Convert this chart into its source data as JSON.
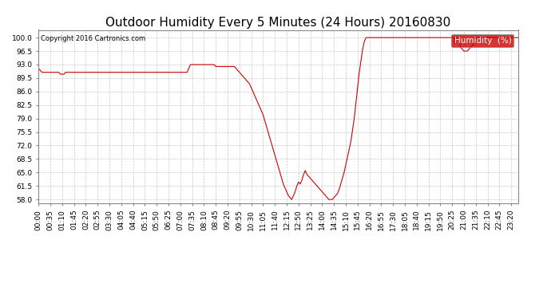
{
  "title": "Outdoor Humidity Every 5 Minutes (24 Hours) 20160830",
  "copyright_text": "Copyright 2016 Cartronics.com",
  "legend_label": "Humidity  (%)",
  "legend_bg": "#cc0000",
  "legend_text_color": "#ffffff",
  "line_color": "#cc0000",
  "background_color": "#ffffff",
  "grid_color": "#bbbbbb",
  "ylim": [
    57.0,
    102.0
  ],
  "yticks": [
    58.0,
    61.5,
    65.0,
    68.5,
    72.0,
    75.5,
    79.0,
    82.5,
    86.0,
    89.5,
    93.0,
    96.5,
    100.0
  ],
  "title_fontsize": 11,
  "tick_fontsize": 6.5,
  "humidity_data": [
    92.0,
    91.5,
    91.0,
    91.0,
    91.0,
    91.0,
    91.0,
    91.0,
    91.0,
    91.0,
    91.0,
    91.0,
    91.0,
    90.5,
    90.5,
    90.5,
    91.0,
    91.0,
    91.0,
    91.0,
    91.0,
    91.0,
    91.0,
    91.0,
    91.0,
    91.0,
    91.0,
    91.0,
    91.0,
    91.0,
    91.0,
    91.0,
    91.0,
    91.0,
    91.0,
    91.0,
    91.0,
    91.0,
    91.0,
    91.0,
    91.0,
    91.0,
    91.0,
    91.0,
    91.0,
    91.0,
    91.0,
    91.0,
    91.0,
    91.0,
    91.0,
    91.0,
    91.0,
    91.0,
    91.0,
    91.0,
    91.0,
    91.0,
    91.0,
    91.0,
    91.0,
    91.0,
    91.0,
    91.0,
    91.0,
    91.0,
    91.0,
    91.0,
    91.0,
    91.0,
    91.0,
    91.0,
    91.0,
    91.0,
    91.0,
    91.0,
    91.0,
    91.0,
    91.0,
    91.0,
    91.0,
    91.0,
    91.0,
    91.0,
    91.0,
    91.0,
    91.0,
    91.0,
    91.0,
    92.0,
    93.0,
    93.0,
    93.0,
    93.0,
    93.0,
    93.0,
    93.0,
    93.0,
    93.0,
    93.0,
    93.0,
    93.0,
    93.0,
    93.0,
    93.0,
    92.5,
    92.5,
    92.5,
    92.5,
    92.5,
    92.5,
    92.5,
    92.5,
    92.5,
    92.5,
    92.5,
    92.5,
    92.0,
    91.5,
    91.0,
    90.5,
    90.0,
    89.5,
    89.0,
    88.5,
    88.0,
    87.0,
    86.0,
    85.0,
    84.0,
    83.0,
    82.0,
    81.0,
    80.0,
    78.5,
    77.0,
    75.5,
    74.0,
    72.5,
    71.0,
    69.5,
    68.0,
    66.5,
    65.0,
    63.5,
    62.0,
    61.0,
    60.0,
    59.0,
    58.5,
    58.0,
    59.0,
    60.0,
    61.5,
    62.5,
    62.0,
    63.0,
    64.5,
    65.5,
    64.5,
    64.0,
    63.5,
    63.0,
    62.5,
    62.0,
    61.5,
    61.0,
    60.5,
    60.0,
    59.5,
    59.0,
    58.5,
    58.0,
    58.0,
    58.0,
    58.5,
    59.0,
    59.5,
    60.5,
    62.0,
    63.5,
    65.0,
    67.0,
    69.0,
    71.0,
    73.0,
    76.0,
    79.0,
    83.0,
    87.0,
    91.0,
    94.0,
    97.0,
    99.0,
    100.0,
    100.0,
    100.0,
    100.0,
    100.0,
    100.0,
    100.0,
    100.0,
    100.0,
    100.0,
    100.0,
    100.0,
    100.0,
    100.0,
    100.0,
    100.0,
    100.0,
    100.0,
    100.0,
    100.0,
    100.0,
    100.0,
    100.0,
    100.0,
    100.0,
    100.0,
    100.0,
    100.0,
    100.0,
    100.0,
    100.0,
    100.0,
    100.0,
    100.0,
    100.0,
    100.0,
    100.0,
    100.0,
    100.0,
    100.0,
    100.0,
    100.0,
    100.0,
    100.0,
    100.0,
    100.0,
    100.0,
    100.0,
    100.0,
    100.0,
    100.0,
    100.0,
    100.0,
    100.0,
    100.0,
    100.0,
    97.5,
    97.0,
    96.5,
    96.5,
    96.5,
    97.0,
    97.5,
    98.0,
    98.5,
    99.0,
    100.0,
    100.0,
    100.0,
    100.0,
    100.0,
    100.0,
    100.0,
    100.0,
    100.0,
    100.0,
    100.0,
    100.0,
    100.0,
    100.0,
    100.0,
    100.0,
    100.0,
    100.0,
    100.0,
    100.0,
    100.0,
    100.0,
    100.0,
    100.0,
    100.0
  ]
}
